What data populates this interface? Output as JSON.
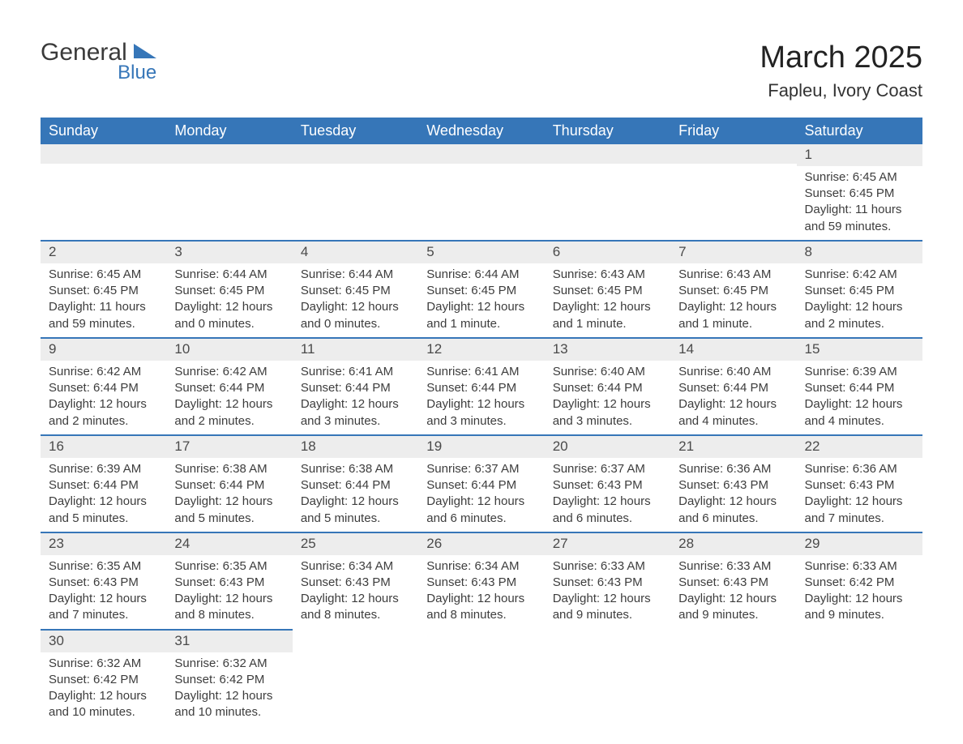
{
  "logo": {
    "text_main": "General",
    "text_sub": "Blue",
    "shape_color": "#3676b8"
  },
  "title": "March 2025",
  "location": "Fapleu, Ivory Coast",
  "header_bg": "#3676b8",
  "header_fg": "#ffffff",
  "row_divider_color": "#3676b8",
  "daynum_bg": "#ededed",
  "text_color": "#3d3d3d",
  "font_family": "Arial",
  "day_headers": [
    "Sunday",
    "Monday",
    "Tuesday",
    "Wednesday",
    "Thursday",
    "Friday",
    "Saturday"
  ],
  "weeks": [
    [
      null,
      null,
      null,
      null,
      null,
      null,
      {
        "n": "1",
        "sunrise": "Sunrise: 6:45 AM",
        "sunset": "Sunset: 6:45 PM",
        "daylight": "Daylight: 11 hours and 59 minutes."
      }
    ],
    [
      {
        "n": "2",
        "sunrise": "Sunrise: 6:45 AM",
        "sunset": "Sunset: 6:45 PM",
        "daylight": "Daylight: 11 hours and 59 minutes."
      },
      {
        "n": "3",
        "sunrise": "Sunrise: 6:44 AM",
        "sunset": "Sunset: 6:45 PM",
        "daylight": "Daylight: 12 hours and 0 minutes."
      },
      {
        "n": "4",
        "sunrise": "Sunrise: 6:44 AM",
        "sunset": "Sunset: 6:45 PM",
        "daylight": "Daylight: 12 hours and 0 minutes."
      },
      {
        "n": "5",
        "sunrise": "Sunrise: 6:44 AM",
        "sunset": "Sunset: 6:45 PM",
        "daylight": "Daylight: 12 hours and 1 minute."
      },
      {
        "n": "6",
        "sunrise": "Sunrise: 6:43 AM",
        "sunset": "Sunset: 6:45 PM",
        "daylight": "Daylight: 12 hours and 1 minute."
      },
      {
        "n": "7",
        "sunrise": "Sunrise: 6:43 AM",
        "sunset": "Sunset: 6:45 PM",
        "daylight": "Daylight: 12 hours and 1 minute."
      },
      {
        "n": "8",
        "sunrise": "Sunrise: 6:42 AM",
        "sunset": "Sunset: 6:45 PM",
        "daylight": "Daylight: 12 hours and 2 minutes."
      }
    ],
    [
      {
        "n": "9",
        "sunrise": "Sunrise: 6:42 AM",
        "sunset": "Sunset: 6:44 PM",
        "daylight": "Daylight: 12 hours and 2 minutes."
      },
      {
        "n": "10",
        "sunrise": "Sunrise: 6:42 AM",
        "sunset": "Sunset: 6:44 PM",
        "daylight": "Daylight: 12 hours and 2 minutes."
      },
      {
        "n": "11",
        "sunrise": "Sunrise: 6:41 AM",
        "sunset": "Sunset: 6:44 PM",
        "daylight": "Daylight: 12 hours and 3 minutes."
      },
      {
        "n": "12",
        "sunrise": "Sunrise: 6:41 AM",
        "sunset": "Sunset: 6:44 PM",
        "daylight": "Daylight: 12 hours and 3 minutes."
      },
      {
        "n": "13",
        "sunrise": "Sunrise: 6:40 AM",
        "sunset": "Sunset: 6:44 PM",
        "daylight": "Daylight: 12 hours and 3 minutes."
      },
      {
        "n": "14",
        "sunrise": "Sunrise: 6:40 AM",
        "sunset": "Sunset: 6:44 PM",
        "daylight": "Daylight: 12 hours and 4 minutes."
      },
      {
        "n": "15",
        "sunrise": "Sunrise: 6:39 AM",
        "sunset": "Sunset: 6:44 PM",
        "daylight": "Daylight: 12 hours and 4 minutes."
      }
    ],
    [
      {
        "n": "16",
        "sunrise": "Sunrise: 6:39 AM",
        "sunset": "Sunset: 6:44 PM",
        "daylight": "Daylight: 12 hours and 5 minutes."
      },
      {
        "n": "17",
        "sunrise": "Sunrise: 6:38 AM",
        "sunset": "Sunset: 6:44 PM",
        "daylight": "Daylight: 12 hours and 5 minutes."
      },
      {
        "n": "18",
        "sunrise": "Sunrise: 6:38 AM",
        "sunset": "Sunset: 6:44 PM",
        "daylight": "Daylight: 12 hours and 5 minutes."
      },
      {
        "n": "19",
        "sunrise": "Sunrise: 6:37 AM",
        "sunset": "Sunset: 6:44 PM",
        "daylight": "Daylight: 12 hours and 6 minutes."
      },
      {
        "n": "20",
        "sunrise": "Sunrise: 6:37 AM",
        "sunset": "Sunset: 6:43 PM",
        "daylight": "Daylight: 12 hours and 6 minutes."
      },
      {
        "n": "21",
        "sunrise": "Sunrise: 6:36 AM",
        "sunset": "Sunset: 6:43 PM",
        "daylight": "Daylight: 12 hours and 6 minutes."
      },
      {
        "n": "22",
        "sunrise": "Sunrise: 6:36 AM",
        "sunset": "Sunset: 6:43 PM",
        "daylight": "Daylight: 12 hours and 7 minutes."
      }
    ],
    [
      {
        "n": "23",
        "sunrise": "Sunrise: 6:35 AM",
        "sunset": "Sunset: 6:43 PM",
        "daylight": "Daylight: 12 hours and 7 minutes."
      },
      {
        "n": "24",
        "sunrise": "Sunrise: 6:35 AM",
        "sunset": "Sunset: 6:43 PM",
        "daylight": "Daylight: 12 hours and 8 minutes."
      },
      {
        "n": "25",
        "sunrise": "Sunrise: 6:34 AM",
        "sunset": "Sunset: 6:43 PM",
        "daylight": "Daylight: 12 hours and 8 minutes."
      },
      {
        "n": "26",
        "sunrise": "Sunrise: 6:34 AM",
        "sunset": "Sunset: 6:43 PM",
        "daylight": "Daylight: 12 hours and 8 minutes."
      },
      {
        "n": "27",
        "sunrise": "Sunrise: 6:33 AM",
        "sunset": "Sunset: 6:43 PM",
        "daylight": "Daylight: 12 hours and 9 minutes."
      },
      {
        "n": "28",
        "sunrise": "Sunrise: 6:33 AM",
        "sunset": "Sunset: 6:43 PM",
        "daylight": "Daylight: 12 hours and 9 minutes."
      },
      {
        "n": "29",
        "sunrise": "Sunrise: 6:33 AM",
        "sunset": "Sunset: 6:42 PM",
        "daylight": "Daylight: 12 hours and 9 minutes."
      }
    ],
    [
      {
        "n": "30",
        "sunrise": "Sunrise: 6:32 AM",
        "sunset": "Sunset: 6:42 PM",
        "daylight": "Daylight: 12 hours and 10 minutes."
      },
      {
        "n": "31",
        "sunrise": "Sunrise: 6:32 AM",
        "sunset": "Sunset: 6:42 PM",
        "daylight": "Daylight: 12 hours and 10 minutes."
      },
      null,
      null,
      null,
      null,
      null
    ]
  ]
}
